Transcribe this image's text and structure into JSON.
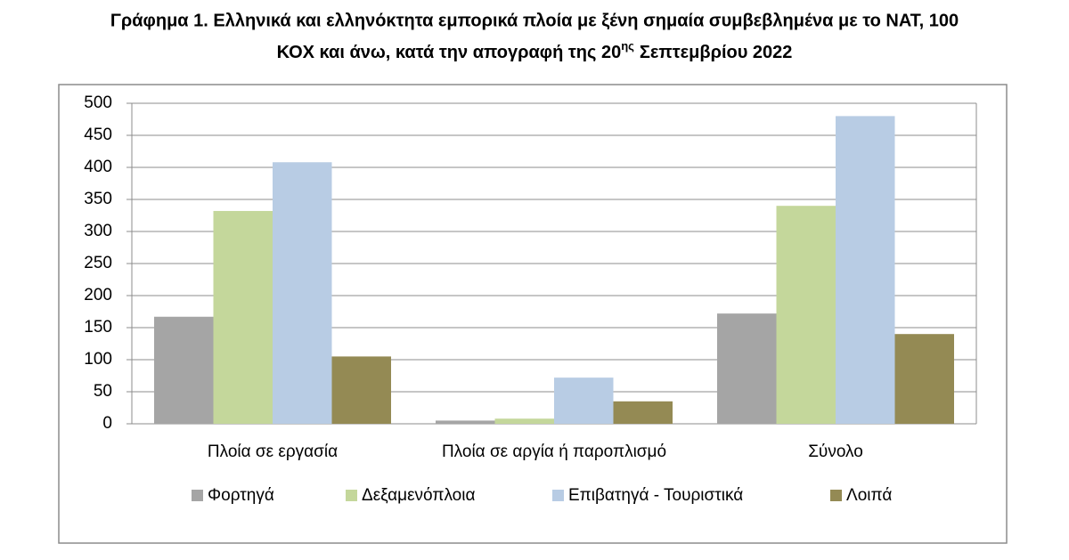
{
  "chart_data": {
    "type": "bar",
    "title": [
      "Γράφημα 1. Ελληνικά και ελληνόκτητα εμπορικά πλοία με ξένη σημαία συμβεβλημένα με το ΝΑΤ, 100",
      "ΚΟΧ και άνω, κατά την απογραφή της 20",
      "ης",
      "Σεπτεμβρίου 2022"
    ],
    "categories": [
      "Πλοία σε εργασία",
      "Πλοία σε αργία ή παροπλισμό",
      "Σύνολο"
    ],
    "series": [
      {
        "name": "Φορτηγά",
        "color": "#a5a5a5",
        "values": [
          167,
          5,
          172
        ]
      },
      {
        "name": "Δεξαμενόπλοια",
        "color": "#c4d79b",
        "values": [
          332,
          8,
          340
        ]
      },
      {
        "name": "Επιβατηγά - Τουριστικά",
        "color": "#b8cce4",
        "values": [
          408,
          72,
          480
        ]
      },
      {
        "name": "Λοιπά",
        "color": "#948a54",
        "values": [
          105,
          35,
          140
        ]
      }
    ],
    "ylim": [
      0,
      500
    ],
    "yticks": [
      0,
      50,
      100,
      150,
      200,
      250,
      300,
      350,
      400,
      450,
      500
    ],
    "grid": true,
    "legend": "bottom"
  }
}
